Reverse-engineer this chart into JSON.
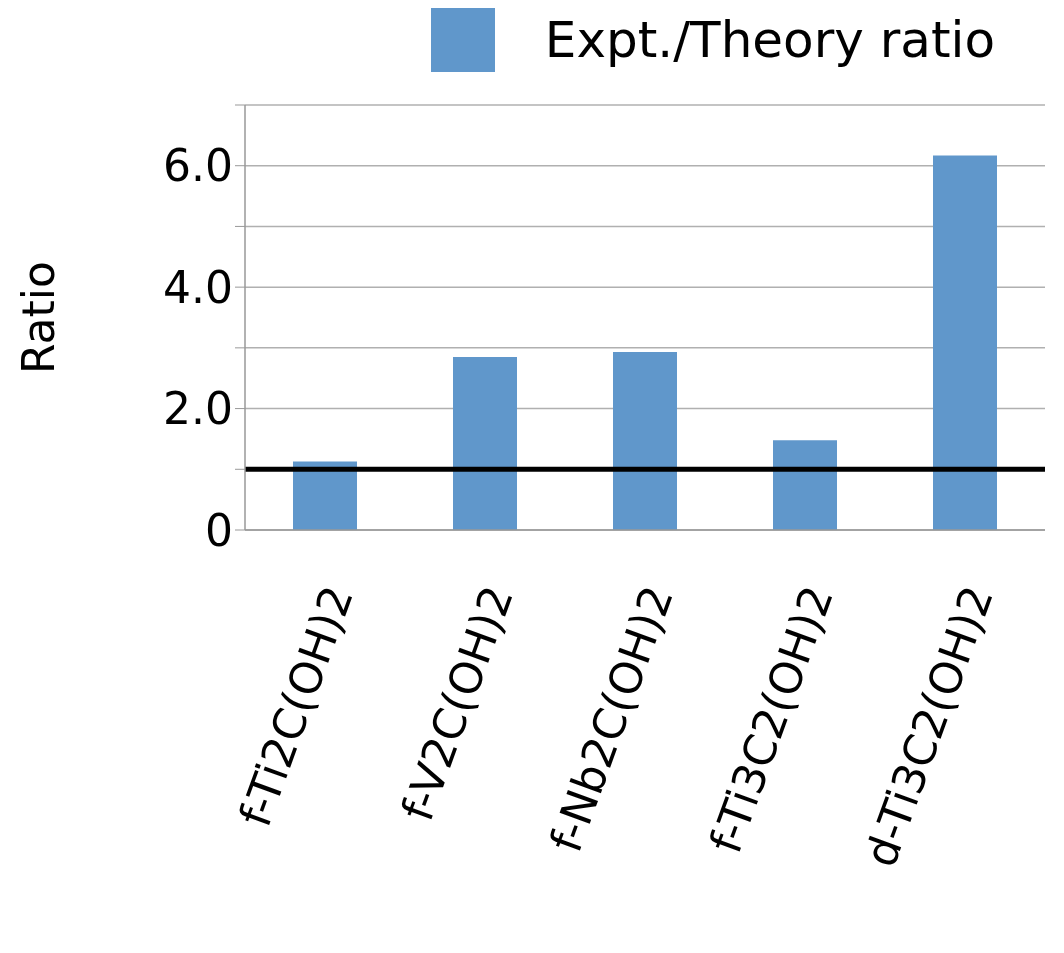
{
  "chart_data": {
    "type": "bar",
    "ylabel": "Ratio",
    "categories": [
      "f-Ti2C(OH)2",
      "f-V2C(OH)2",
      "f-Nb2C(OH)2",
      "f-Ti3C2(OH)2",
      "d-Ti3C2(OH)2"
    ],
    "series": [
      {
        "name": "Expt./Theory ratio",
        "color": "#6097cb",
        "values": [
          1.13,
          2.85,
          2.93,
          1.48,
          6.17
        ]
      }
    ],
    "ylim": [
      0,
      7
    ],
    "yticks": [
      0,
      {
        "value": 1,
        "label": null
      },
      {
        "value": 2,
        "label": "2.0"
      },
      {
        "value": 3,
        "label": null
      },
      {
        "value": 4,
        "label": "4.0"
      },
      {
        "value": 5,
        "label": null
      },
      {
        "value": 6,
        "label": "6.0"
      },
      {
        "value": 7,
        "label": null
      }
    ],
    "grid": "y",
    "legend": "top right",
    "ref_lines": [
      {
        "axis": "y",
        "value": 1,
        "color": "#000000"
      }
    ]
  }
}
